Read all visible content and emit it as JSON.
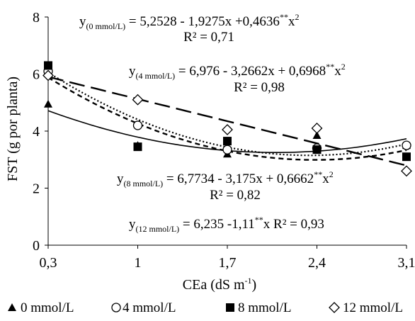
{
  "chart_data": {
    "type": "scatter",
    "x": [
      0.3,
      1,
      1.7,
      2.4,
      3.1
    ],
    "x_tick_labels": [
      "0,3",
      "1",
      "1,7",
      "2,4",
      "3,1"
    ],
    "xlim": [
      0.3,
      3.1
    ],
    "ylim": [
      0,
      8
    ],
    "y_ticks": [
      0,
      2,
      4,
      6,
      8
    ],
    "xlabel": {
      "main": "CEa (dS m",
      "sup": "-1",
      "close": ")"
    },
    "ylabel": "FST (g por planta)",
    "grid": false,
    "legend_position": "bottom",
    "series": [
      {
        "name": "0 mmol/L",
        "marker": "triangle",
        "values": [
          4.95,
          3.5,
          3.2,
          3.85,
          3.5
        ],
        "fit": {
          "type": "quadratic",
          "coefficients": [
            5.2528,
            -1.9275,
            0.4636
          ]
        },
        "line_style": "solid",
        "equation": {
          "lhs": "y",
          "sub": "(0 mmol/L)",
          "rhs": " = 5,2528 - 1,9275x +0,4636",
          "sup1": "**",
          "tail": "x",
          "sup2": "2",
          "r2": "R² = 0,71"
        }
      },
      {
        "name": "4 mmol/L",
        "marker": "open-circle",
        "values": [
          6.1,
          4.2,
          3.35,
          3.4,
          3.5
        ],
        "fit": {
          "type": "quadratic",
          "coefficients": [
            6.976,
            -3.2662,
            0.6968
          ]
        },
        "line_style": "dotted",
        "equation": {
          "lhs": "y",
          "sub": "(4 mmol/L)",
          "rhs": " = 6,976 - 3,2662x + 0,6968",
          "sup1": "**",
          "tail": "x",
          "sup2": "2",
          "r2": "R² = 0,98"
        }
      },
      {
        "name": "8 mmol/L",
        "marker": "filled-square",
        "values": [
          6.3,
          3.45,
          3.65,
          3.35,
          3.1
        ],
        "fit": {
          "type": "quadratic",
          "coefficients": [
            6.7734,
            -3.175,
            0.6662
          ]
        },
        "line_style": "short-dash",
        "equation": {
          "lhs": "y",
          "sub": "(8 mmol/L)",
          "rhs": " = 6,7734 - 3,175x + 0,6662",
          "sup1": "**",
          "tail": "x",
          "sup2": "2",
          "r2": "R² = 0,82"
        }
      },
      {
        "name": "12 mmol/L",
        "marker": "open-diamond",
        "values": [
          5.95,
          5.1,
          4.05,
          4.1,
          2.6
        ],
        "fit": {
          "type": "linear",
          "coefficients": [
            6.235,
            -1.11
          ]
        },
        "line_style": "long-dash",
        "equation": {
          "lhs": "y",
          "sub": "(12 mmol/L)",
          "rhs": " = 6,235 -1,11",
          "sup1": "**",
          "tail": "x  R² = 0,93",
          "sup2": "",
          "r2": ""
        }
      }
    ]
  }
}
